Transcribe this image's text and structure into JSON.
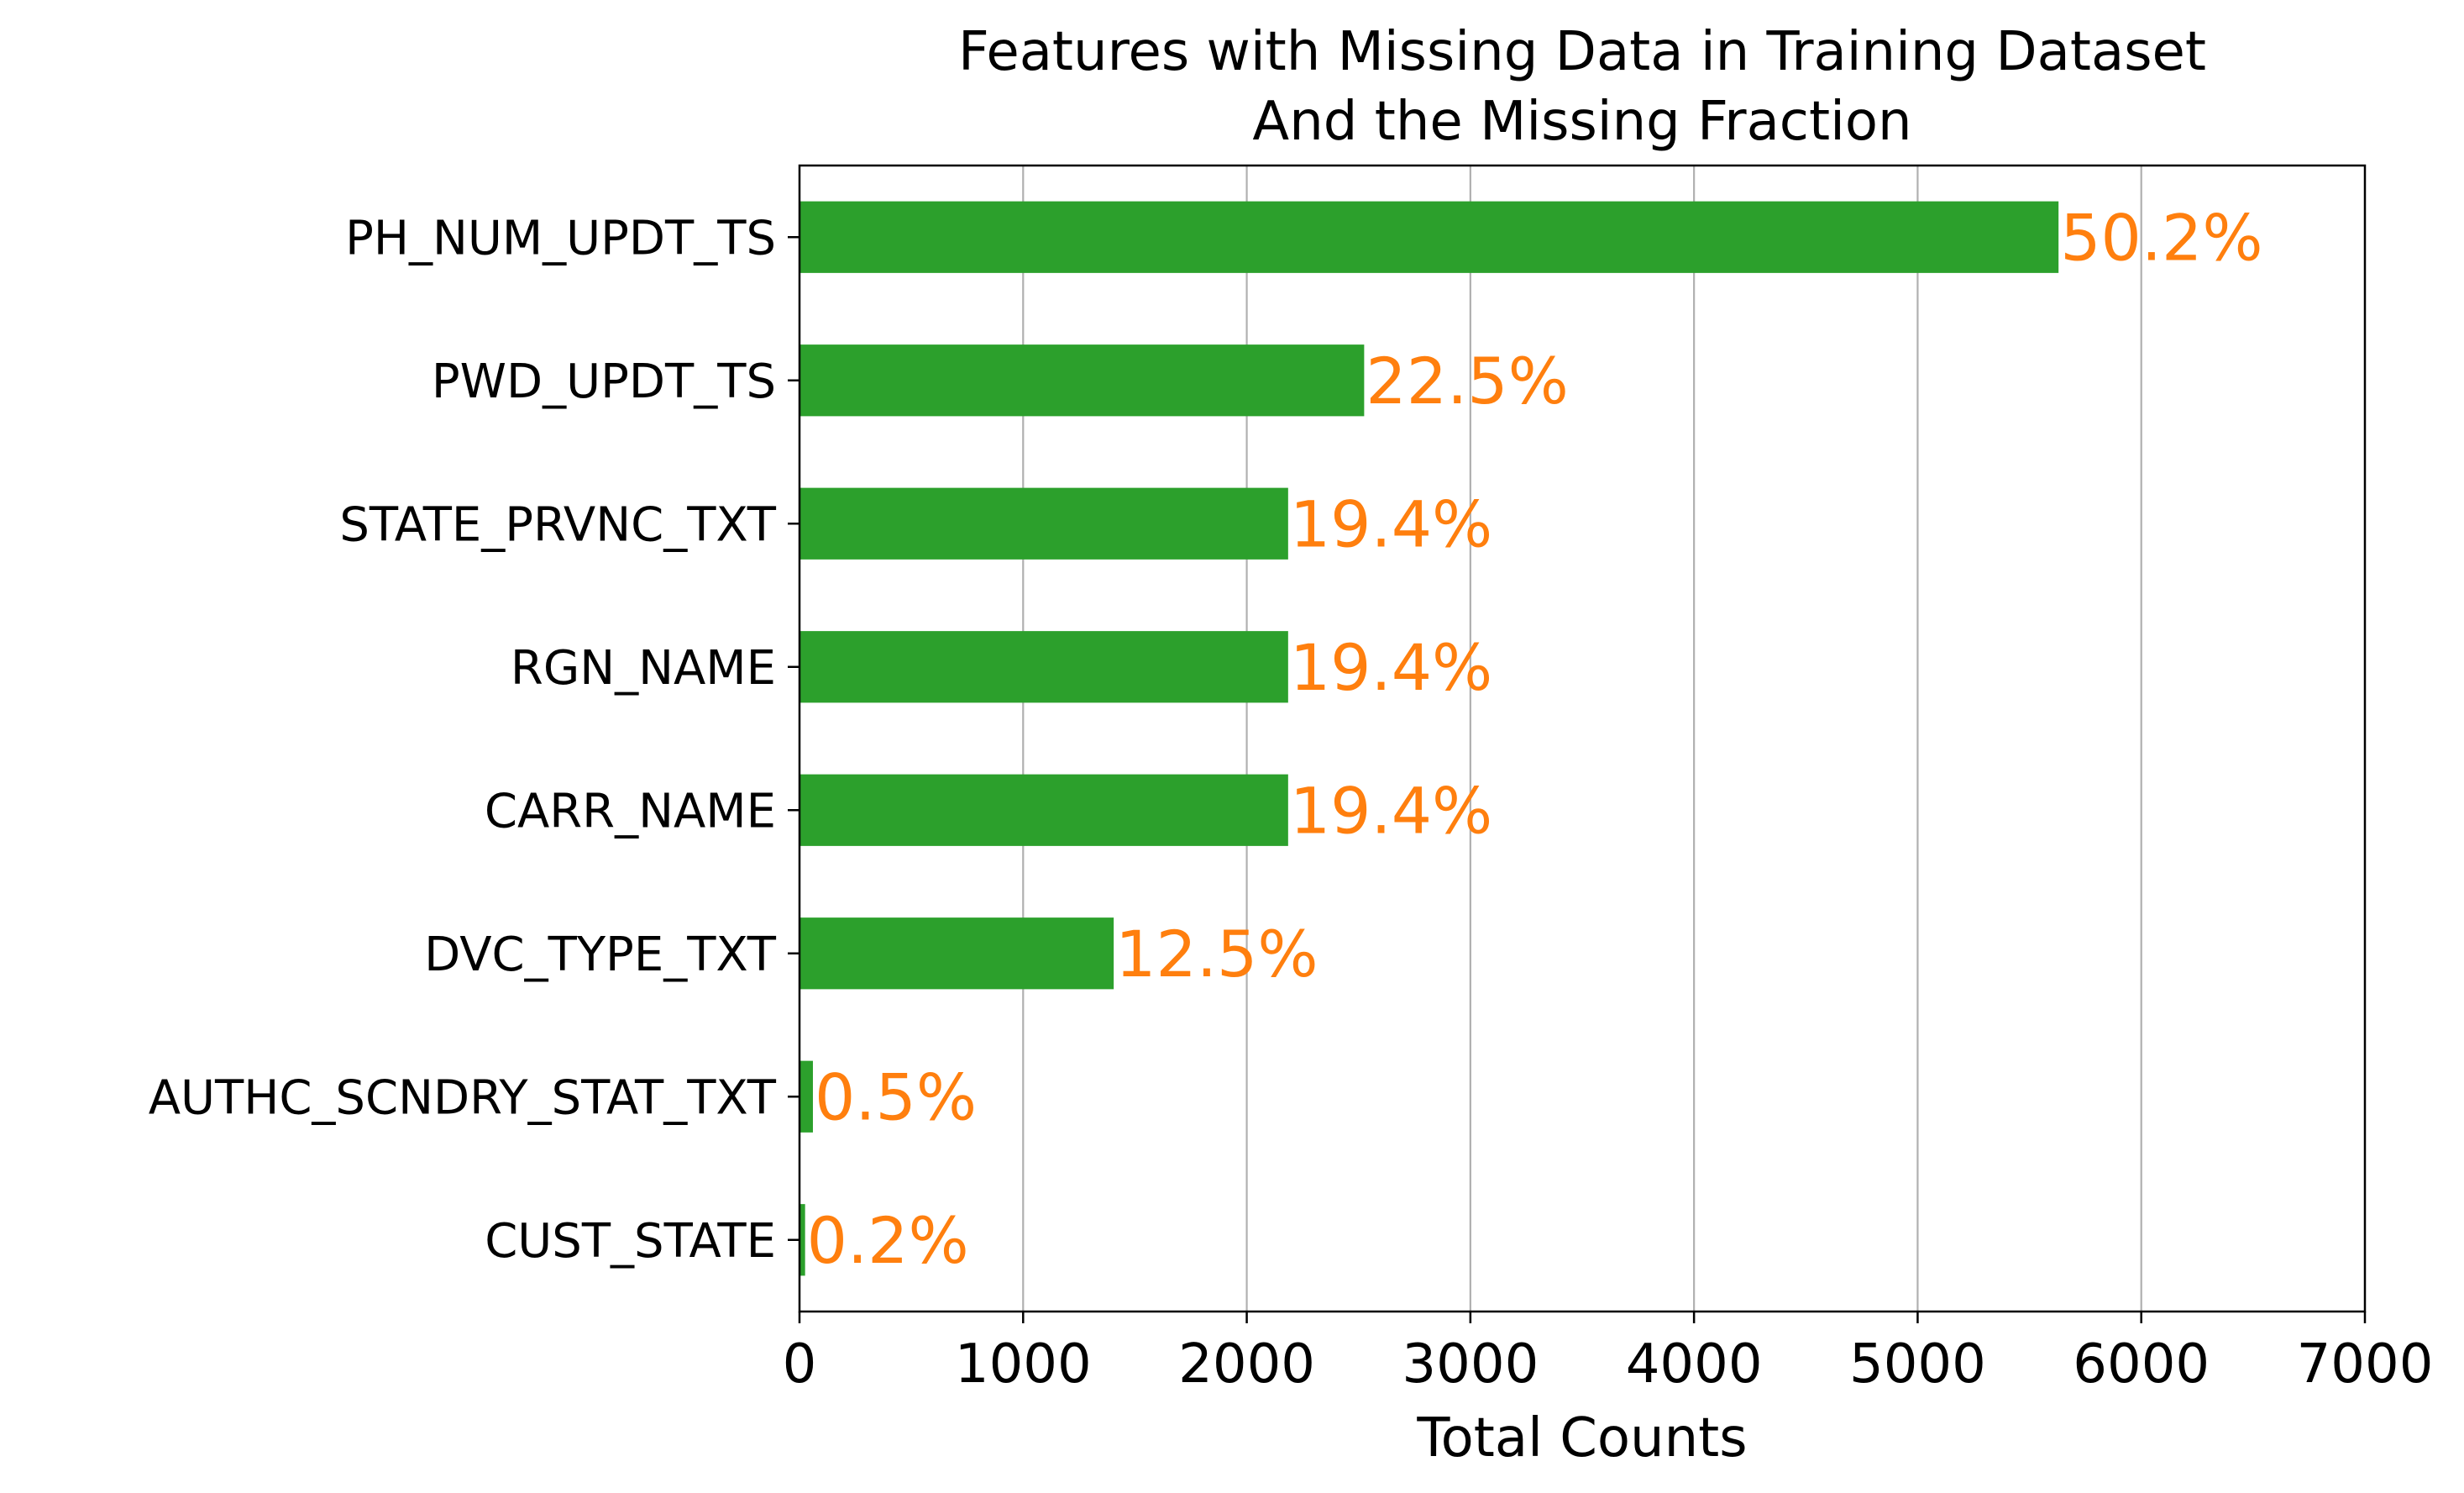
{
  "chart_data": {
    "type": "bar",
    "orientation": "horizontal",
    "title": [
      "Features with Missing Data in Training Dataset",
      "And the Missing Fraction"
    ],
    "xlabel": "Total Counts",
    "ylabel": "",
    "xlim": [
      0,
      7000
    ],
    "xticks": [
      "0",
      "1000",
      "2000",
      "3000",
      "4000",
      "5000",
      "6000",
      "7000"
    ],
    "grid": "x-axis vertical lines",
    "categories": [
      "PH_NUM_UPDT_TS",
      "PWD_UPDT_TS",
      "STATE_PRVNC_TXT",
      "RGN_NAME",
      "CARR_NAME",
      "DVC_TYPE_TXT",
      "AUTHC_SCNDRY_STAT_TXT",
      "CUST_STATE"
    ],
    "values": [
      5630,
      2525,
      2185,
      2185,
      2185,
      1405,
      60,
      25
    ],
    "labels": [
      "50.2%",
      "22.5%",
      "19.4%",
      "19.4%",
      "19.4%",
      "12.5%",
      "0.5%",
      "0.2%"
    ],
    "bar_color": "#2ca02c",
    "label_color": "#ff7f0e"
  }
}
